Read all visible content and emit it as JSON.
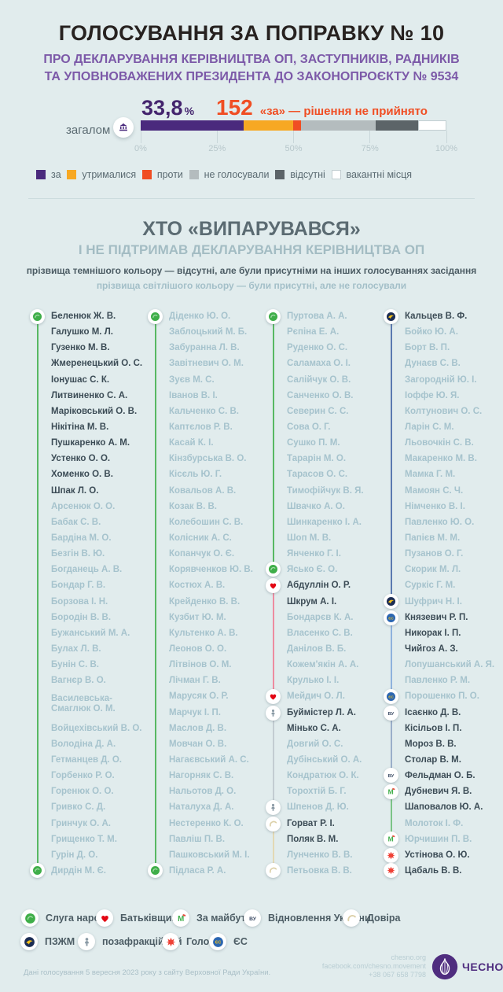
{
  "header": {
    "title": "ГОЛОСУВАННЯ ЗА ПОПРАВКУ № 10",
    "subtitle": "ПРО ДЕКЛАРУВАННЯ КЕРІВНИЦТВА ОП, ЗАСТУПНИКІВ, РАДНИКІВ\nТА УПОВНОВАЖЕНИХ ПРЕЗИДЕНТА ДО ЗАКОНОПРОЄКТУ № 9534"
  },
  "chart_data": {
    "type": "bar",
    "stacked": true,
    "row_label": "загалом",
    "percent_label": "33,8",
    "percent_sign": "%",
    "votes_for": "152",
    "result_note": "«за» — рішення не прийнято",
    "axis_ticks": [
      "0%",
      "25%",
      "50%",
      "75%",
      "100%"
    ],
    "xlim": [
      0,
      100
    ],
    "series": [
      {
        "name": "за",
        "value": 33.8,
        "color": "#4a2a7d",
        "outlined": false
      },
      {
        "name": "утрималися",
        "value": 16.1,
        "color": "#f7a823",
        "outlined": false
      },
      {
        "name": "проти",
        "value": 2.5,
        "color": "#f04e23",
        "outlined": false
      },
      {
        "name": "не голосували",
        "value": 24.5,
        "color": "#b4bcbe",
        "outlined": false
      },
      {
        "name": "відсутні",
        "value": 13.8,
        "color": "#5c6468",
        "outlined": false
      },
      {
        "name": "вакантні місця",
        "value": 9.3,
        "color": "#ffffff",
        "outlined": true
      }
    ]
  },
  "section": {
    "title": "ХТО «ВИПАРУВАВСЯ»",
    "subtitle": "І НЕ ПІДТРИМАВ ДЕКЛАРУВАННЯ КЕРІВНИЦТВА ОП",
    "note_dark": "прізвища темнішого кольору — відсутні, але були присутніми на інших голосуваннях засідання",
    "note_light": "прізвища світлішого кольору — були присутні, але не голосували"
  },
  "parties": {
    "sn": {
      "label": "Слуга народу",
      "color": "#3fae49",
      "line": "#58b863",
      "icon": "sn-icon"
    },
    "batkivshchyna": {
      "label": "Батьківщина",
      "color": "#e30613",
      "line": "#ed8ba0",
      "icon": "heart-icon"
    },
    "zm": {
      "label": "За майбутнє",
      "color": "#3fae49",
      "line": "#7cc487",
      "icon": "zm-icon"
    },
    "vu": {
      "label": "Відновлення України",
      "color": "#3d4d66",
      "line": "#9aaec9",
      "icon": "vu-icon"
    },
    "dovira": {
      "label": "Довіра",
      "color": "#dcd0a8",
      "line": "#e3d8b4",
      "icon": "dovira-icon"
    },
    "pzzhm": {
      "label": "ПЗЖМ",
      "color": "#1d2e55",
      "line": "#5b79b0",
      "icon": "pzzhm-icon"
    },
    "pozafrak": {
      "label": "позафракційний",
      "color": "#8a9aa5",
      "line": "#c3ccd1",
      "icon": "person-icon"
    },
    "holos": {
      "label": "Голос",
      "color": "#ef4136",
      "line": "#f0998f",
      "icon": "holos-icon"
    },
    "es": {
      "label": "ЄС",
      "color": "#2b66b1",
      "line": "#8fb2dd",
      "icon": "es-icon"
    }
  },
  "party_legend_rows": [
    [
      "sn",
      "batkivshchyna",
      "zm",
      "vu",
      "dovira"
    ],
    [
      "pzzhm",
      "pozafrak",
      "holos",
      "es"
    ]
  ],
  "columns": [
    {
      "groups": [
        {
          "party": "sn",
          "names": [
            [
              "d",
              "Беленюк Ж. В."
            ],
            [
              "d",
              "Галушко М. Л."
            ],
            [
              "d",
              "Гузенко М. В."
            ],
            [
              "d",
              "Жмеренецький О. С."
            ],
            [
              "d",
              "Іонушас С. К."
            ],
            [
              "d",
              "Литвиненко С. А."
            ],
            [
              "d",
              "Маріковський О. В."
            ],
            [
              "d",
              "Нікітіна М. В."
            ],
            [
              "d",
              "Пушкаренко А. М."
            ],
            [
              "d",
              "Устенко О. О."
            ],
            [
              "d",
              "Хоменко О. В."
            ],
            [
              "d",
              "Шпак Л. О."
            ],
            [
              "l",
              "Арсенюк О. О."
            ],
            [
              "l",
              "Бабак С. В."
            ],
            [
              "l",
              "Бардіна М. О."
            ],
            [
              "l",
              "Безгін В. Ю."
            ],
            [
              "l",
              "Богданець А. В."
            ],
            [
              "l",
              "Бондар Г. В."
            ],
            [
              "l",
              "Борзова І. Н."
            ],
            [
              "l",
              "Бородін В. В."
            ],
            [
              "l",
              "Бужанський М. А."
            ],
            [
              "l",
              "Булах Л. В."
            ],
            [
              "l",
              "Бунін С. В."
            ],
            [
              "l",
              "Вагнєр В. О."
            ],
            [
              "l",
              "Василевська-\nСмаглюк О. М."
            ],
            [
              "l",
              "Войцехівський В. О."
            ],
            [
              "l",
              "Володіна Д. А."
            ],
            [
              "l",
              "Гетманцев Д. О."
            ],
            [
              "l",
              "Горбенко Р. О."
            ],
            [
              "l",
              "Горенюк О. О."
            ],
            [
              "l",
              "Гривко С. Д."
            ],
            [
              "l",
              "Гринчук О. А."
            ],
            [
              "l",
              "Грищенко Т. М."
            ],
            [
              "l",
              "Гурін Д. О."
            ],
            [
              "l",
              "Дирдін М. Є."
            ]
          ]
        }
      ]
    },
    {
      "groups": [
        {
          "party": "sn",
          "names": [
            [
              "l",
              "Діденко Ю. О."
            ],
            [
              "l",
              "Заблоцький М. Б."
            ],
            [
              "l",
              "Забуранна Л. В."
            ],
            [
              "l",
              "Завітневич О. М."
            ],
            [
              "l",
              "Зуєв М. С."
            ],
            [
              "l",
              "Іванов В. І."
            ],
            [
              "l",
              "Кальченко С. В."
            ],
            [
              "l",
              "Каптєлов Р. В."
            ],
            [
              "l",
              "Касай К. І."
            ],
            [
              "l",
              "Кінзбурська В. О."
            ],
            [
              "l",
              "Кісєль Ю. Г."
            ],
            [
              "l",
              "Ковальов А. В."
            ],
            [
              "l",
              "Козак В. В."
            ],
            [
              "l",
              "Колебошин С. В."
            ],
            [
              "l",
              "Колісник А. С."
            ],
            [
              "l",
              "Копанчук О. Є."
            ],
            [
              "l",
              "Корявченков Ю. В."
            ],
            [
              "l",
              "Костюх А. В."
            ],
            [
              "l",
              "Крейденко В. В."
            ],
            [
              "l",
              "Кузбит Ю. М."
            ],
            [
              "l",
              "Культенко А. В."
            ],
            [
              "l",
              "Леонов О. О."
            ],
            [
              "l",
              "Літвінов О. М."
            ],
            [
              "l",
              "Лічман Г. В."
            ],
            [
              "l",
              "Марусяк О. Р."
            ],
            [
              "l",
              "Марчук І. П."
            ],
            [
              "l",
              "Маслов Д. В."
            ],
            [
              "l",
              "Мовчан О. В."
            ],
            [
              "l",
              "Нагаєвський А. С."
            ],
            [
              "l",
              "Нагорняк С. В."
            ],
            [
              "l",
              "Нальотов Д. О."
            ],
            [
              "l",
              "Наталуха Д. А."
            ],
            [
              "l",
              "Нестеренко К. О."
            ],
            [
              "l",
              "Павліш П. В."
            ],
            [
              "l",
              "Пашковський М. І."
            ],
            [
              "l",
              "Підласа Р. А."
            ]
          ]
        }
      ]
    },
    {
      "groups": [
        {
          "party": "sn",
          "names": [
            [
              "l",
              "Пуртова А. А."
            ],
            [
              "l",
              "Рєпіна Е. А."
            ],
            [
              "l",
              "Руденко О. С."
            ],
            [
              "l",
              "Саламаха О. І."
            ],
            [
              "l",
              "Салійчук О. В."
            ],
            [
              "l",
              "Санченко О. В."
            ],
            [
              "l",
              "Северин С. С."
            ],
            [
              "l",
              "Сова О. Г."
            ],
            [
              "l",
              "Сушко П. М."
            ],
            [
              "l",
              "Тарарін М. О."
            ],
            [
              "l",
              "Тарасов О. С."
            ],
            [
              "l",
              "Тимофійчук В. Я."
            ],
            [
              "l",
              "Швачко А. О."
            ],
            [
              "l",
              "Шинкаренко І. А."
            ],
            [
              "l",
              "Шоп М. В."
            ],
            [
              "l",
              "Янченко Г. І."
            ],
            [
              "l",
              "Ясько Є. О."
            ]
          ]
        },
        {
          "party": "batkivshchyna",
          "names": [
            [
              "d",
              "Абдуллін О. Р."
            ],
            [
              "d",
              "Шкрум А. І."
            ],
            [
              "l",
              "Бондарєв К. А."
            ],
            [
              "l",
              "Власенко С. В."
            ],
            [
              "l",
              "Данілов В. Б."
            ],
            [
              "l",
              "Кожем'якін А. А."
            ],
            [
              "l",
              "Крулько І. І."
            ],
            [
              "l",
              "Мейдич О. Л."
            ]
          ]
        },
        {
          "party": "pozafrak",
          "names": [
            [
              "d",
              "Буймістер Л. А."
            ],
            [
              "d",
              "Мінько С. А."
            ],
            [
              "l",
              "Довгий О. С."
            ],
            [
              "l",
              "Дубінський О. А."
            ],
            [
              "l",
              "Кондратюк О. К."
            ],
            [
              "l",
              "Торохтій Б. Г."
            ],
            [
              "l",
              "Шпенов Д. Ю."
            ]
          ]
        },
        {
          "party": "dovira",
          "names": [
            [
              "d",
              "Горват Р. І."
            ],
            [
              "d",
              "Поляк В. М."
            ],
            [
              "l",
              "Лунченко В. В."
            ],
            [
              "l",
              "Петьовка В. В."
            ]
          ]
        }
      ]
    },
    {
      "groups": [
        {
          "party": "pzzhm",
          "names": [
            [
              "d",
              "Кальцев В. Ф."
            ],
            [
              "l",
              "Бойко Ю. А."
            ],
            [
              "l",
              "Борт В. П."
            ],
            [
              "l",
              "Дунаєв С. В."
            ],
            [
              "l",
              "Загородній Ю. І."
            ],
            [
              "l",
              "Іоффе Ю. Я."
            ],
            [
              "l",
              "Колтунович О. С."
            ],
            [
              "l",
              "Ларін С. М."
            ],
            [
              "l",
              "Льовочкін С. В."
            ],
            [
              "l",
              "Макаренко М. В."
            ],
            [
              "l",
              "Мамка Г. М."
            ],
            [
              "l",
              "Мамоян С. Ч."
            ],
            [
              "l",
              "Німченко В. І."
            ],
            [
              "l",
              "Павленко Ю. О."
            ],
            [
              "l",
              "Папієв М. М."
            ],
            [
              "l",
              "Пузанов О. Г."
            ],
            [
              "l",
              "Скорик М. Л."
            ],
            [
              "l",
              "Суркіс Г. М."
            ],
            [
              "l",
              "Шуфрич Н. І."
            ]
          ]
        },
        {
          "party": "es",
          "names": [
            [
              "d",
              "Князевич Р. П."
            ],
            [
              "d",
              "Никорак І. П."
            ],
            [
              "d",
              "Чийгоз А. З."
            ],
            [
              "l",
              "Лопушанський А. Я."
            ],
            [
              "l",
              "Павленко Р. М."
            ],
            [
              "l",
              "Порошенко П. О."
            ]
          ]
        },
        {
          "party": "vu",
          "names": [
            [
              "d",
              "Ісаєнко Д. В."
            ],
            [
              "d",
              "Кісільов І. П."
            ],
            [
              "d",
              "Мороз В. В."
            ],
            [
              "d",
              "Столар В. М."
            ],
            [
              "d",
              "Фельдман О. Б."
            ]
          ]
        },
        {
          "party": "zm",
          "names": [
            [
              "d",
              "Дубневич Я. В."
            ],
            [
              "d",
              "Шаповалов Ю. А."
            ],
            [
              "l",
              "Молоток І. Ф."
            ],
            [
              "l",
              "Юрчишин П. В."
            ]
          ]
        },
        {
          "party": "holos",
          "names": [
            [
              "d",
              "Устінова О. Ю."
            ],
            [
              "d",
              "Цабаль В. В."
            ]
          ]
        }
      ]
    }
  ],
  "footer": {
    "source": "Дані голосування 5 вересня 2023 року з сайту Верховної Ради України.",
    "site": "chesno.org",
    "facebook": "facebook.com/chesno.movement",
    "phone": "+38 067 658 7798",
    "brand": "ЧЕСНО"
  }
}
